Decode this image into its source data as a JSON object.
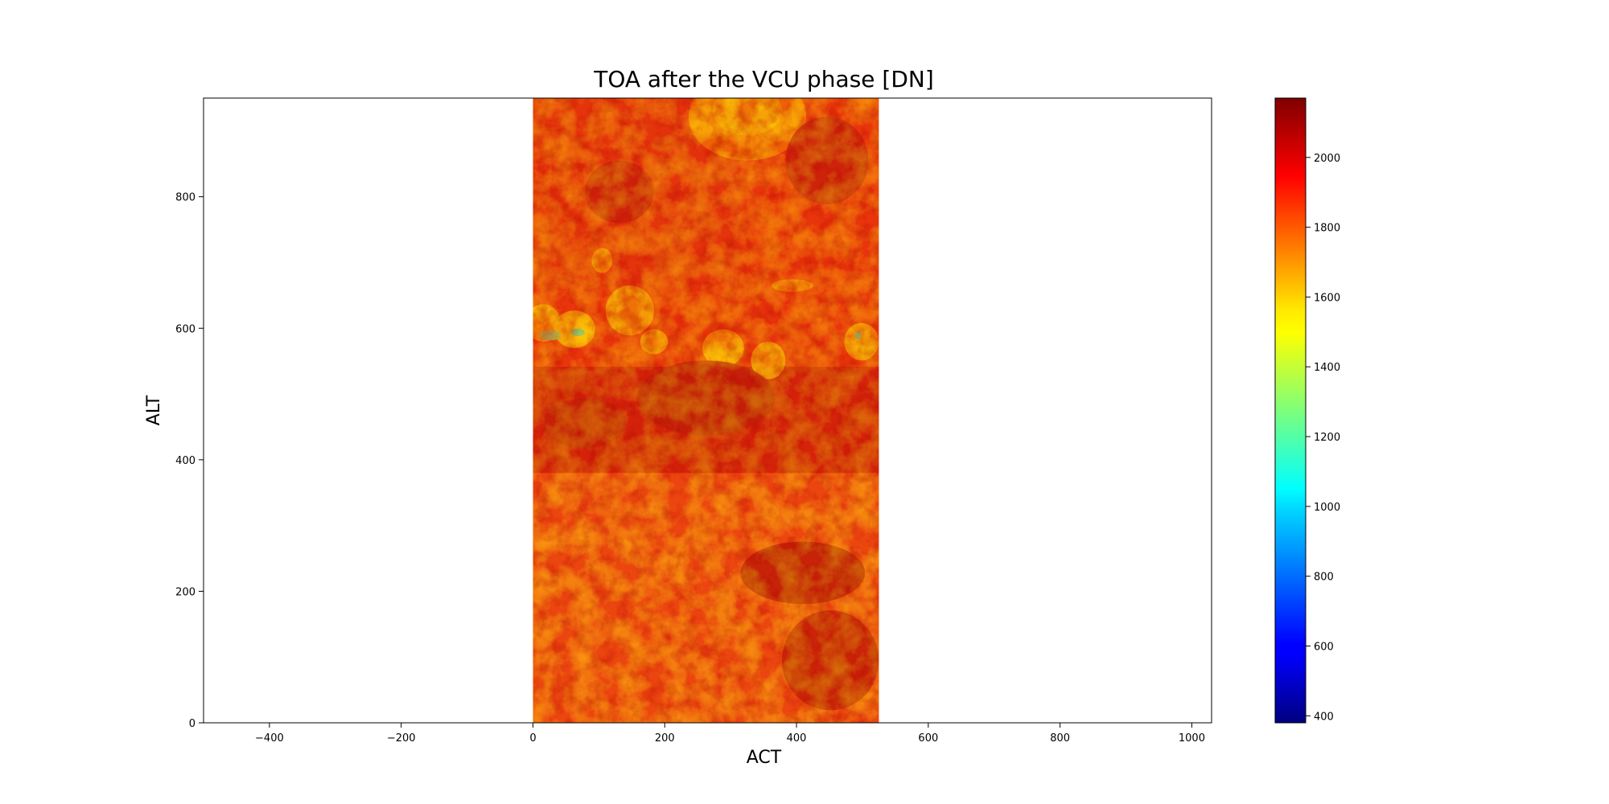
{
  "chart_data": {
    "type": "heatmap",
    "title": "TOA after the VCU phase [DN]",
    "xlabel": "ACT",
    "ylabel": "ALT",
    "xlim": [
      -500,
      1030
    ],
    "ylim": [
      0,
      950
    ],
    "image_extent": {
      "x": [
        0,
        525
      ],
      "y": [
        0,
        950
      ]
    },
    "x_ticks": [
      -400,
      -200,
      0,
      200,
      400,
      600,
      800,
      1000
    ],
    "x_tick_labels": [
      "−400",
      "−200",
      "0",
      "200",
      "400",
      "600",
      "800",
      "1000"
    ],
    "y_ticks": [
      0,
      200,
      400,
      600,
      800
    ],
    "y_tick_labels": [
      "0",
      "200",
      "400",
      "600",
      "800"
    ],
    "colormap": "jet",
    "colorbar": {
      "range": [
        380,
        2170
      ],
      "ticks": [
        400,
        600,
        800,
        1000,
        1200,
        1400,
        1600,
        1800,
        2000
      ],
      "tick_labels": [
        "400",
        "600",
        "800",
        "1000",
        "1200",
        "1400",
        "1600",
        "1800",
        "2000"
      ]
    },
    "grid": false
  }
}
